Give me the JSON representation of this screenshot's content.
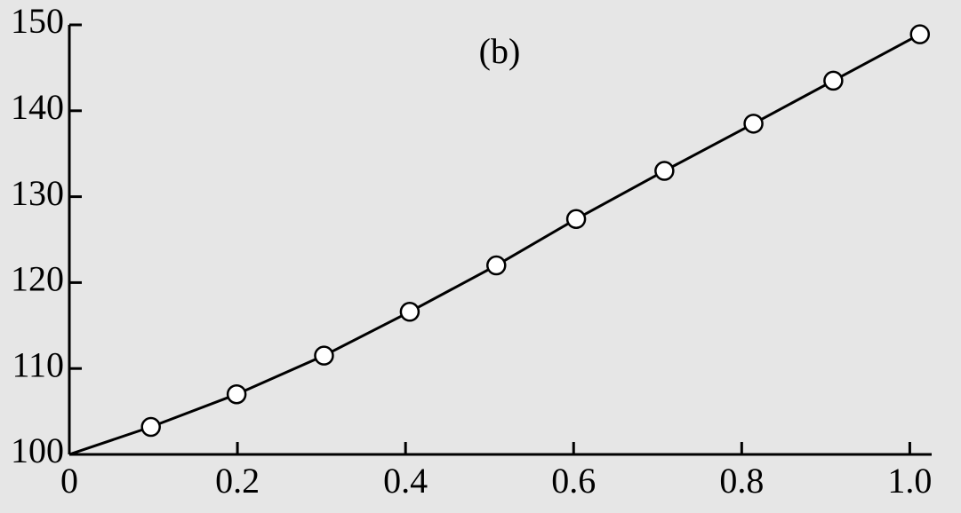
{
  "chart_data": {
    "type": "line",
    "annotation": "(b)",
    "series": [
      {
        "color": "#000000",
        "marker": false,
        "x": [
          0,
          0.097,
          0.199,
          0.303,
          0.405,
          0.508,
          0.603,
          0.708,
          0.814,
          0.909,
          1.012
        ],
        "values": [
          100,
          103.2,
          107.0,
          111.5,
          116.6,
          122.0,
          127.4,
          133.0,
          138.5,
          143.5,
          148.9
        ]
      },
      {
        "color": "#000000",
        "marker": true,
        "x": [
          0.097,
          0.199,
          0.303,
          0.405,
          0.508,
          0.603,
          0.708,
          0.814,
          0.909,
          1.012
        ],
        "values": [
          103.2,
          107.0,
          111.5,
          116.6,
          122.0,
          127.4,
          133.0,
          138.5,
          143.5,
          148.9
        ]
      }
    ],
    "xlim": [
      0,
      1.026
    ],
    "xticks": [
      0,
      0.2,
      0.4,
      0.6,
      0.8,
      {
        "value": 1,
        "label": "1.0"
      }
    ],
    "ylim": [
      100,
      150
    ],
    "yticks": [
      100,
      110,
      120,
      130,
      140,
      150
    ],
    "grid": false
  }
}
